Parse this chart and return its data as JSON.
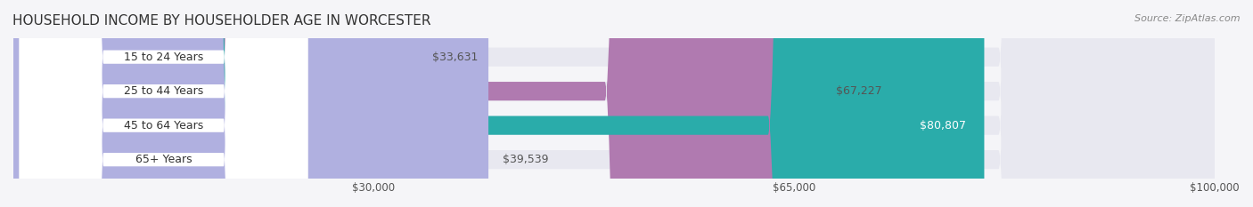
{
  "title": "HOUSEHOLD INCOME BY HOUSEHOLDER AGE IN WORCESTER",
  "source": "Source: ZipAtlas.com",
  "categories": [
    "15 to 24 Years",
    "25 to 44 Years",
    "45 to 64 Years",
    "65+ Years"
  ],
  "values": [
    33631,
    67227,
    80807,
    39539
  ],
  "bar_colors": [
    "#a8b8e8",
    "#b07ab0",
    "#2aacaa",
    "#b0b0e0"
  ],
  "bar_bg_color": "#e8e8f0",
  "label_values": [
    "$33,631",
    "$67,227",
    "$80,807",
    "$39,539"
  ],
  "value_inside": [
    false,
    false,
    true,
    false
  ],
  "xlim": [
    0,
    100000
  ],
  "xticks": [
    30000,
    65000,
    100000
  ],
  "xtick_labels": [
    "$30,000",
    "$65,000",
    "$100,000"
  ],
  "background_color": "#f5f5f8",
  "bar_height": 0.55,
  "title_fontsize": 11,
  "source_fontsize": 8,
  "label_fontsize": 9,
  "tick_fontsize": 8.5
}
